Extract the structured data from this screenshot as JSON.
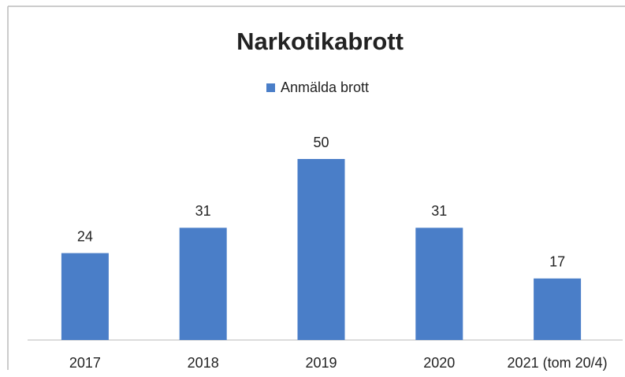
{
  "chart_data": {
    "type": "bar",
    "title": "Narkotikabrott",
    "categories": [
      "2017",
      "2018",
      "2019",
      "2020",
      "2021 (tom 20/4)"
    ],
    "series": [
      {
        "name": "Anmälda brott",
        "color": "#4a7ec8",
        "values": [
          24,
          31,
          50,
          31,
          17
        ]
      }
    ]
  }
}
